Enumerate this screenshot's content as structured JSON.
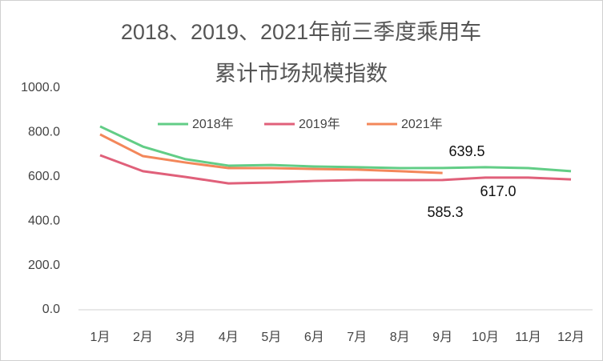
{
  "chart_data": {
    "type": "line",
    "title": "2018、2019、2021年前三季度乘用车",
    "subtitle": "累计市场规模指数",
    "categories": [
      "1月",
      "2月",
      "3月",
      "4月",
      "5月",
      "6月",
      "7月",
      "8月",
      "9月",
      "10月",
      "11月",
      "12月"
    ],
    "series": [
      {
        "name": "2018年",
        "color": "#62cd86",
        "values": [
          827,
          736,
          679,
          650,
          653,
          646,
          643,
          639,
          639.5,
          643,
          639,
          625
        ],
        "value_labels": [
          null,
          null,
          null,
          null,
          null,
          null,
          null,
          null,
          "639.5",
          null,
          null,
          null
        ]
      },
      {
        "name": "2019年",
        "color": "#e0607a",
        "values": [
          697,
          625,
          599,
          570,
          574,
          581,
          585,
          585,
          585.3,
          596,
          596,
          588
        ],
        "value_labels": [
          null,
          null,
          null,
          null,
          null,
          null,
          null,
          null,
          "585.3",
          null,
          null,
          null
        ]
      },
      {
        "name": "2021年",
        "color": "#f3875a",
        "values": [
          791,
          693,
          664,
          639,
          639,
          635,
          632,
          625,
          617,
          null,
          null,
          null
        ],
        "value_labels": [
          null,
          null,
          null,
          null,
          null,
          null,
          null,
          null,
          "617.0",
          null,
          null,
          null
        ]
      }
    ],
    "ylim": [
      0,
      1000
    ],
    "yticks": [
      {
        "value": 0,
        "label": "0.0"
      },
      {
        "value": 200,
        "label": "200.0"
      },
      {
        "value": 400,
        "label": "400.0"
      },
      {
        "value": 600,
        "label": "600.0"
      },
      {
        "value": 800,
        "label": "800.0"
      },
      {
        "value": 1000,
        "label": "1000.0"
      }
    ],
    "grid": false,
    "legend": "top"
  }
}
